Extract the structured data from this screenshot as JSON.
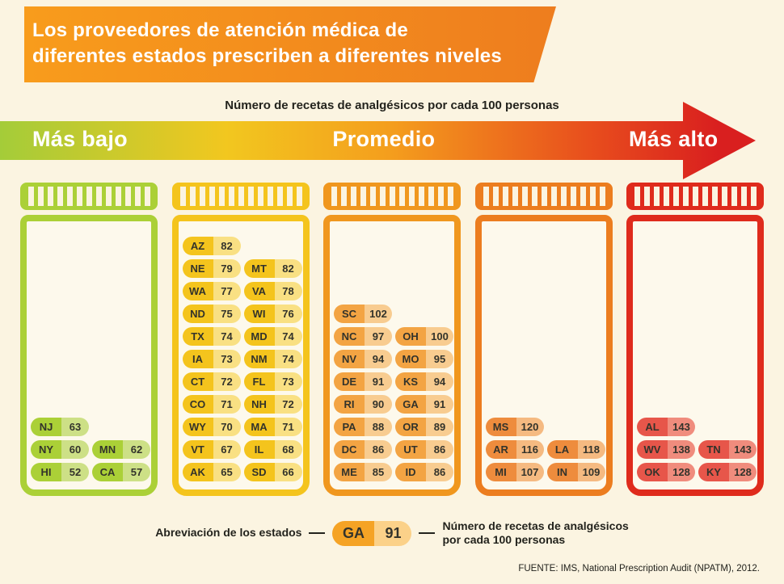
{
  "page": {
    "title_line1": "Los proveedores de atención médica de",
    "title_line2": "diferentes estados prescriben a diferentes niveles",
    "subtitle": "Número de recetas de analgésicos por cada 100 personas",
    "scale_labels": {
      "low": "Más bajo",
      "mid": "Promedio",
      "high": "Más alto"
    },
    "legend": {
      "left_label": "Abreviación de los estados",
      "sample_abbr": "GA",
      "sample_value": "91",
      "right_label_line1": "Número de recetas de analgésicos",
      "right_label_line2": "por cada 100 personas",
      "pill_dark": "#f5a325",
      "pill_light": "#fbd189"
    },
    "source": "FUENTE: IMS, National Prescription Audit (NPATM), 2012."
  },
  "colors": {
    "background": "#fbf4e1",
    "banner_start": "#f89c1c",
    "banner_end": "#ee7d1e",
    "arrow_gradient": [
      "#a4cc39",
      "#f2c71f",
      "#f49d1d",
      "#e84e1d",
      "#d91f1f"
    ]
  },
  "chart_data": {
    "type": "table",
    "title": "Número de recetas de analgésicos por cada 100 personas",
    "scale": [
      "Más bajo",
      "Promedio",
      "Más alto"
    ],
    "groups": [
      {
        "bottle_color": "#abd037",
        "pill_dark": "#abd037",
        "pill_light": "#cde086",
        "rows": [
          [
            {
              "abbr": "NJ",
              "value": 63
            }
          ],
          [
            {
              "abbr": "NY",
              "value": 60
            },
            {
              "abbr": "MN",
              "value": 62
            }
          ],
          [
            {
              "abbr": "HI",
              "value": 52
            },
            {
              "abbr": "CA",
              "value": 57
            }
          ]
        ]
      },
      {
        "bottle_color": "#f4c41d",
        "pill_dark": "#f4c41d",
        "pill_light": "#f9e083",
        "rows": [
          [
            {
              "abbr": "AZ",
              "value": 82
            }
          ],
          [
            {
              "abbr": "NE",
              "value": 79
            },
            {
              "abbr": "MT",
              "value": 82
            }
          ],
          [
            {
              "abbr": "WA",
              "value": 77
            },
            {
              "abbr": "VA",
              "value": 78
            }
          ],
          [
            {
              "abbr": "ND",
              "value": 75
            },
            {
              "abbr": "WI",
              "value": 76
            }
          ],
          [
            {
              "abbr": "TX",
              "value": 74
            },
            {
              "abbr": "MD",
              "value": 74
            }
          ],
          [
            {
              "abbr": "IA",
              "value": 73
            },
            {
              "abbr": "NM",
              "value": 74
            }
          ],
          [
            {
              "abbr": "CT",
              "value": 72
            },
            {
              "abbr": "FL",
              "value": 73
            }
          ],
          [
            {
              "abbr": "CO",
              "value": 71
            },
            {
              "abbr": "NH",
              "value": 72
            }
          ],
          [
            {
              "abbr": "WY",
              "value": 70
            },
            {
              "abbr": "MA",
              "value": 71
            }
          ],
          [
            {
              "abbr": "VT",
              "value": 67
            },
            {
              "abbr": "IL",
              "value": 68
            }
          ],
          [
            {
              "abbr": "AK",
              "value": 65
            },
            {
              "abbr": "SD",
              "value": 66
            }
          ]
        ]
      },
      {
        "bottle_color": "#f0971e",
        "pill_dark": "#f3a443",
        "pill_light": "#f8cc90",
        "rows": [
          [
            {
              "abbr": "SC",
              "value": 102
            }
          ],
          [
            {
              "abbr": "NC",
              "value": 97
            },
            {
              "abbr": "OH",
              "value": 100
            }
          ],
          [
            {
              "abbr": "NV",
              "value": 94
            },
            {
              "abbr": "MO",
              "value": 95
            }
          ],
          [
            {
              "abbr": "DE",
              "value": 91
            },
            {
              "abbr": "KS",
              "value": 94
            }
          ],
          [
            {
              "abbr": "RI",
              "value": 90
            },
            {
              "abbr": "GA",
              "value": 91
            }
          ],
          [
            {
              "abbr": "PA",
              "value": 88
            },
            {
              "abbr": "OR",
              "value": 89
            }
          ],
          [
            {
              "abbr": "DC",
              "value": 86
            },
            {
              "abbr": "UT",
              "value": 86
            }
          ],
          [
            {
              "abbr": "ME",
              "value": 85
            },
            {
              "abbr": "ID",
              "value": 86
            }
          ]
        ]
      },
      {
        "bottle_color": "#ec7d1f",
        "pill_dark": "#ee8c3d",
        "pill_light": "#f5ba81",
        "rows": [
          [
            {
              "abbr": "MS",
              "value": 120
            }
          ],
          [
            {
              "abbr": "AR",
              "value": 116
            },
            {
              "abbr": "LA",
              "value": 118
            }
          ],
          [
            {
              "abbr": "MI",
              "value": 107
            },
            {
              "abbr": "IN",
              "value": 109
            }
          ]
        ]
      },
      {
        "bottle_color": "#df2b1c",
        "pill_dark": "#e7564a",
        "pill_light": "#f08c7d",
        "rows": [
          [
            {
              "abbr": "AL",
              "value": 143
            }
          ],
          [
            {
              "abbr": "WV",
              "value": 138
            },
            {
              "abbr": "TN",
              "value": 143
            }
          ],
          [
            {
              "abbr": "OK",
              "value": 128
            },
            {
              "abbr": "KY",
              "value": 128
            }
          ]
        ]
      }
    ]
  }
}
